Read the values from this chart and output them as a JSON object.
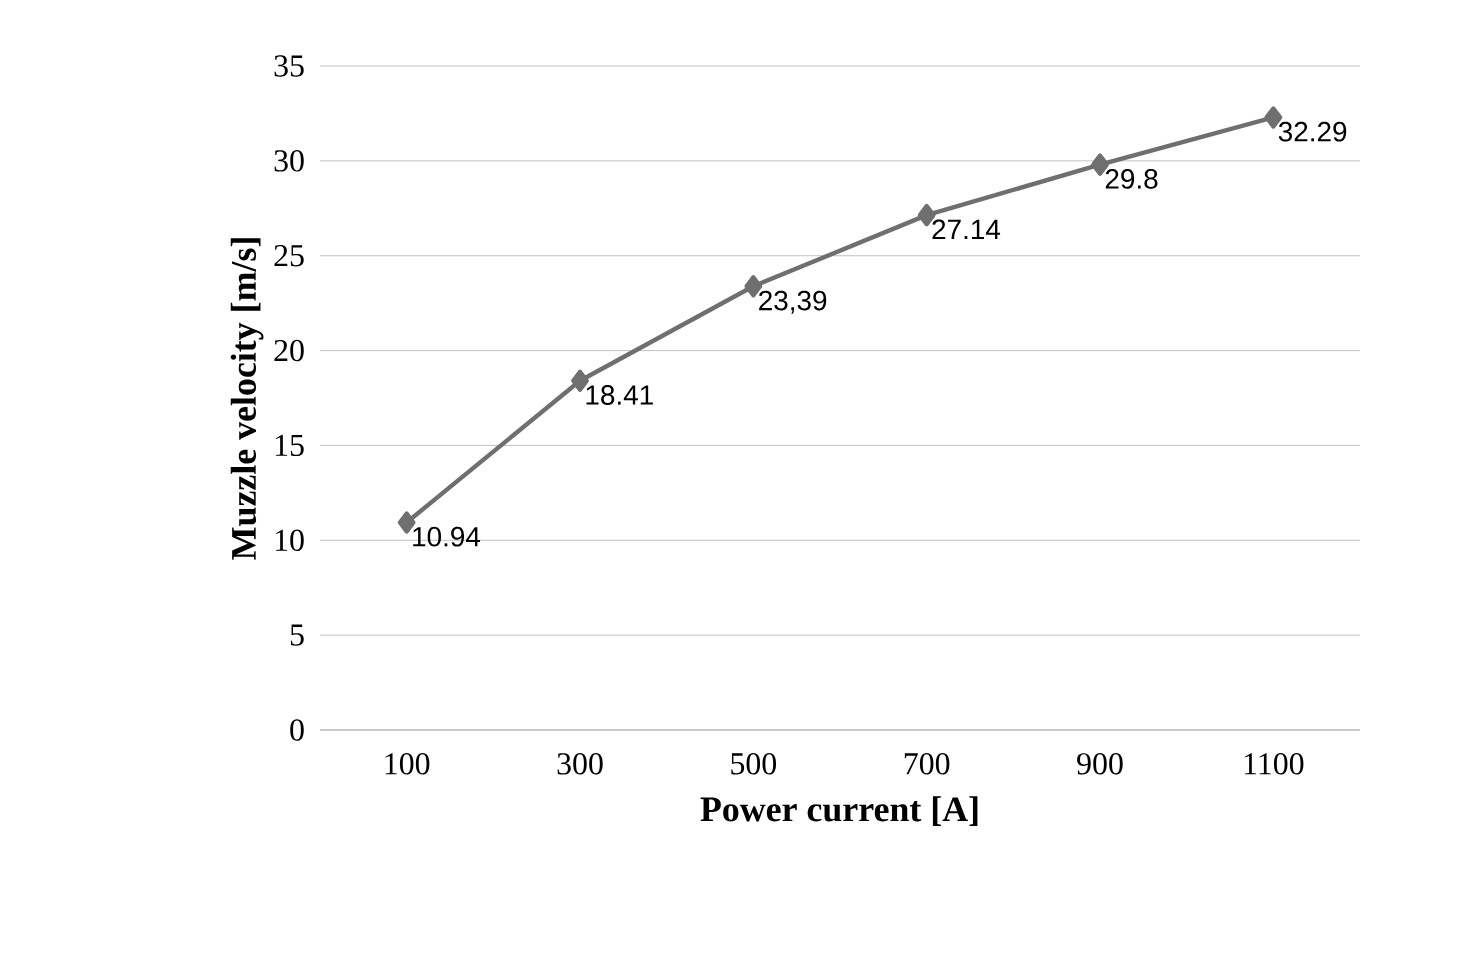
{
  "chart_data": {
    "type": "line",
    "xlabel": "Power current [A]",
    "ylabel": "Muzzle velocity [m/s]",
    "categories": [
      "100",
      "300",
      "500",
      "700",
      "900",
      "1100"
    ],
    "values": [
      10.94,
      18.41,
      23.39,
      27.14,
      29.8,
      32.29
    ],
    "value_labels": [
      "10.94",
      "18.41",
      "23,39",
      "27.14",
      "29.8",
      "32.29"
    ],
    "color": "#6f6f6f",
    "marker": "diamond",
    "line_style": "solid",
    "ylim": [
      0,
      35
    ],
    "yticks": [
      0,
      5,
      10,
      15,
      20,
      25,
      30,
      35
    ],
    "grid": "y"
  }
}
